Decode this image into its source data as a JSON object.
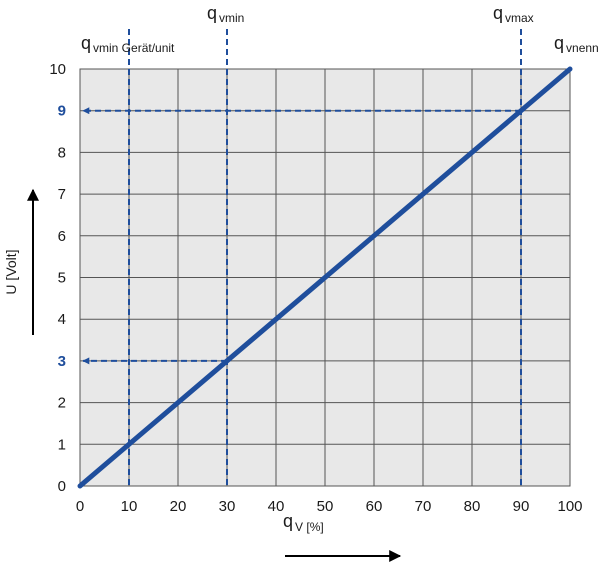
{
  "chart_data": {
    "type": "line",
    "x": [
      0,
      100
    ],
    "y": [
      0,
      10
    ],
    "xlim": [
      0,
      100
    ],
    "ylim": [
      0,
      10
    ],
    "xticks": [
      0,
      10,
      20,
      30,
      40,
      50,
      60,
      70,
      80,
      90,
      100
    ],
    "yticks": [
      0,
      1,
      2,
      3,
      4,
      5,
      6,
      7,
      8,
      9,
      10
    ],
    "highlighted_yticks": [
      3,
      9
    ],
    "grid": true,
    "xlabel": {
      "main": "q",
      "sub": "V [%]"
    },
    "ylabel": "U [Volt]",
    "annotations": [
      {
        "id": "qvmin-unit",
        "x": 10,
        "y": 1,
        "main": "q",
        "sub": "vmin Gerät/unit"
      },
      {
        "id": "qvmin",
        "x": 30,
        "y": 3,
        "main": "q",
        "sub": "vmin"
      },
      {
        "id": "qvmax",
        "x": 90,
        "y": 9,
        "main": "q",
        "sub": "vmax"
      },
      {
        "id": "qvnenn",
        "x": 100,
        "y": 10,
        "main": "q",
        "sub": "vnenn"
      }
    ],
    "guides": [
      {
        "x": 10,
        "y": 1,
        "arrow_to_axis": false
      },
      {
        "x": 30,
        "y": 3,
        "arrow_to_axis": true
      },
      {
        "x": 90,
        "y": 9,
        "arrow_to_axis": true
      }
    ],
    "colors": {
      "line": "#1f4e9c",
      "guide": "#1f4e9c",
      "grid": "#555555",
      "plot_bg": "#e8e8e8",
      "highlight_tick": "#1f4e9c",
      "axis_arrow": "#000000"
    }
  }
}
